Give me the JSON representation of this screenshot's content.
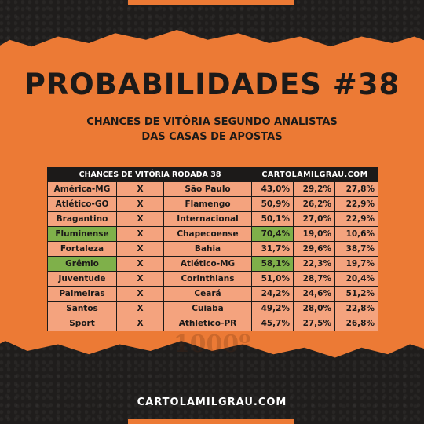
{
  "title": "PROBABILIDADES #38",
  "subtitle_line1": "CHANCES DE VITÓRIA SEGUNDO ANALISTAS",
  "subtitle_line2": "DAS CASAS DE APOSTAS",
  "table": {
    "header_left": "CHANCES DE VITÓRIA RODADA 38",
    "header_right": "CARTOLAMILGRAU.COM",
    "vs": "X",
    "rows": [
      {
        "home": "América-MG",
        "away": "São Paulo",
        "p_home": "43,0%",
        "p_draw": "29,2%",
        "p_away": "27,8%",
        "highlight": false
      },
      {
        "home": "Atlético-GO",
        "away": "Flamengo",
        "p_home": "50,9%",
        "p_draw": "26,2%",
        "p_away": "22,9%",
        "highlight": false
      },
      {
        "home": "Bragantino",
        "away": "Internacional",
        "p_home": "50,1%",
        "p_draw": "27,0%",
        "p_away": "22,9%",
        "highlight": false
      },
      {
        "home": "Fluminense",
        "away": "Chapecoense",
        "p_home": "70,4%",
        "p_draw": "19,0%",
        "p_away": "10,6%",
        "highlight": true
      },
      {
        "home": "Fortaleza",
        "away": "Bahia",
        "p_home": "31,7%",
        "p_draw": "29,6%",
        "p_away": "38,7%",
        "highlight": false
      },
      {
        "home": "Grêmio",
        "away": "Atlético-MG",
        "p_home": "58,1%",
        "p_draw": "22,3%",
        "p_away": "19,7%",
        "highlight": true
      },
      {
        "home": "Juventude",
        "away": "Corinthians",
        "p_home": "51,0%",
        "p_draw": "28,7%",
        "p_away": "20,4%",
        "highlight": false
      },
      {
        "home": "Palmeiras",
        "away": "Ceará",
        "p_home": "24,2%",
        "p_draw": "24,6%",
        "p_away": "51,2%",
        "highlight": false
      },
      {
        "home": "Santos",
        "away": "Cuiaba",
        "p_home": "49,2%",
        "p_draw": "28,0%",
        "p_away": "22,8%",
        "highlight": false
      },
      {
        "home": "Sport",
        "away": "Athletico-PR",
        "p_home": "45,7%",
        "p_draw": "27,5%",
        "p_away": "26,8%",
        "highlight": false
      }
    ]
  },
  "watermark_text": "1000º",
  "footer": "CARTOLAMILGRAU.COM",
  "colors": {
    "orange": "#ec7a35",
    "dark": "#1f1d1c",
    "cell": "#f4a37e",
    "highlight": "#7fb04a"
  }
}
